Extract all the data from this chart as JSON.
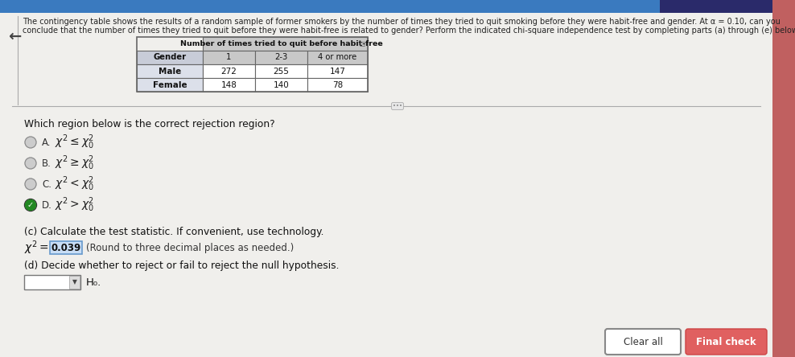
{
  "bg_color": "#e8e8e8",
  "content_bg": "#f0f0ed",
  "top_bar_color": "#3a7abf",
  "top_bar2_color": "#2a2a6a",
  "header_text": "The contingency table shows the results of a random sample of former smokers by the number of times they tried to quit smoking before they were habit-free and gender. At α = 0.10, can you",
  "header_text2": "conclude that the number of times they tried to quit before they were habit-free is related to gender? Perform the indicated chi-square independence test by completing parts (a) through (e) below.",
  "table_header": "Number of times tried to quit before habit-free",
  "col_headers": [
    "Gender",
    "1",
    "2-3",
    "4 or more"
  ],
  "rows": [
    [
      "Male",
      "272",
      "255",
      "147"
    ],
    [
      "Female",
      "148",
      "140",
      "78"
    ]
  ],
  "question_label": "Which region below is the correct rejection region?",
  "options": [
    {
      "label": "A.",
      "math": "$\\chi^2 \\leq \\chi^2_0$",
      "selected": false
    },
    {
      "label": "B.",
      "math": "$\\chi^2 \\geq \\chi^2_0$",
      "selected": false
    },
    {
      "label": "C.",
      "math": "$\\chi^2 < \\chi^2_0$",
      "selected": false
    },
    {
      "label": "D.",
      "math": "$\\chi^2 > \\chi^2_0$",
      "selected": true
    }
  ],
  "part_c_label": "(c) Calculate the test statistic. If convenient, use technology.",
  "chi_sq_value": "0.039",
  "chi_sq_note": "(Round to three decimal places as needed.)",
  "part_d_label": "(d) Decide whether to reject or fail to reject the null hypothesis.",
  "h0_label": "H₀.",
  "button1": "Clear all",
  "button2": "Final check",
  "table_header_bg": "#c8c8c8",
  "col_header_bg": "#c8ccd8",
  "gender_col_bg": "#dce0ea",
  "data_cell_bg": "#ffffff",
  "table_border": "#666666",
  "selected_radio_color": "#228822",
  "highlight_box_color": "#c8ddf5",
  "highlight_box_border": "#6699cc",
  "left_arrow_color": "#444444",
  "divider_color": "#aaaaaa",
  "radio_unsel_color": "#888888",
  "btn1_bg": "#ffffff",
  "btn1_border": "#888888",
  "btn2_bg": "#e06060",
  "btn2_text": "#ffffff",
  "right_sidebar_color": "#c06060"
}
